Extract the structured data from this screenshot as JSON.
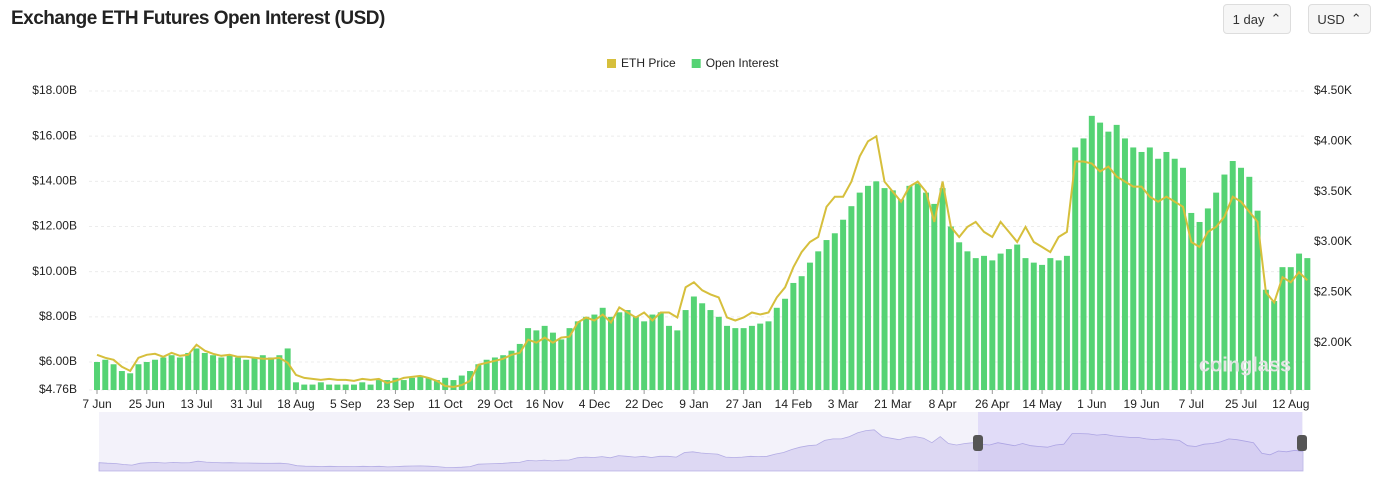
{
  "chart_data": {
    "type": "bar",
    "title": "Exchange ETH Futures Open Interest (USD)",
    "controls": [
      "1 day",
      "USD"
    ],
    "watermark": "coinglass",
    "legend": "top",
    "grid": true,
    "categories": [
      "7 Jun",
      null,
      null,
      null,
      null,
      null,
      "25 Jun",
      null,
      null,
      null,
      null,
      null,
      "13 Jul",
      null,
      null,
      null,
      null,
      null,
      "31 Jul",
      null,
      null,
      null,
      null,
      null,
      "18 Aug",
      null,
      null,
      null,
      null,
      null,
      "5 Sep",
      null,
      null,
      null,
      null,
      null,
      "23 Sep",
      null,
      null,
      null,
      null,
      null,
      "11 Oct",
      null,
      null,
      null,
      null,
      null,
      "29 Oct",
      null,
      null,
      null,
      null,
      null,
      "16 Nov",
      null,
      null,
      null,
      null,
      null,
      "4 Dec",
      null,
      null,
      null,
      null,
      null,
      "22 Dec",
      null,
      null,
      null,
      null,
      null,
      "9 Jan",
      null,
      null,
      null,
      null,
      null,
      "27 Jan",
      null,
      null,
      null,
      null,
      null,
      "14 Feb",
      null,
      null,
      null,
      null,
      null,
      "3 Mar",
      null,
      null,
      null,
      null,
      null,
      "21 Mar",
      null,
      null,
      null,
      null,
      null,
      "8 Apr",
      null,
      null,
      null,
      null,
      null,
      "26 Apr",
      null,
      null,
      null,
      null,
      null,
      "14 May",
      null,
      null,
      null,
      null,
      null,
      "1 Jun",
      null,
      null,
      null,
      null,
      null,
      "19 Jun",
      null,
      null,
      null,
      null,
      null,
      "7 Jul",
      null,
      null,
      null,
      null,
      null,
      "25 Jul",
      null,
      null,
      null,
      null,
      null,
      "12 Aug",
      null,
      null
    ],
    "series": [
      {
        "name": "ETH Price",
        "type": "line",
        "axis": "y2",
        "color": "#d6bf3c",
        "values": [
          1.88,
          1.85,
          1.83,
          1.76,
          1.72,
          1.85,
          1.88,
          1.89,
          1.86,
          1.9,
          1.87,
          1.88,
          1.98,
          1.92,
          1.89,
          1.87,
          1.88,
          1.86,
          1.86,
          1.85,
          1.84,
          1.84,
          1.85,
          1.8,
          1.68,
          1.65,
          1.64,
          1.63,
          1.64,
          1.63,
          1.63,
          1.62,
          1.64,
          1.63,
          1.64,
          1.6,
          1.62,
          1.65,
          1.66,
          1.67,
          1.65,
          1.62,
          1.57,
          1.56,
          1.58,
          1.62,
          1.78,
          1.8,
          1.82,
          1.84,
          1.88,
          1.9,
          2.03,
          2.0,
          2.05,
          2.0,
          2.05,
          2.06,
          2.2,
          2.25,
          2.22,
          2.28,
          2.2,
          2.35,
          2.3,
          2.25,
          2.3,
          2.22,
          2.3,
          2.3,
          2.25,
          2.55,
          2.6,
          2.52,
          2.48,
          2.45,
          2.25,
          2.22,
          2.25,
          2.3,
          2.28,
          2.3,
          2.45,
          2.55,
          2.75,
          2.9,
          3.0,
          3.05,
          3.35,
          3.45,
          3.45,
          3.6,
          3.85,
          4.0,
          4.05,
          3.6,
          3.5,
          3.4,
          3.55,
          3.6,
          3.5,
          3.2,
          3.6,
          3.15,
          3.05,
          3.15,
          3.2,
          3.1,
          3.05,
          3.2,
          3.1,
          3.0,
          3.15,
          3.0,
          2.95,
          2.9,
          3.05,
          3.1,
          3.8,
          3.8,
          3.78,
          3.7,
          3.75,
          3.65,
          3.6,
          3.55,
          3.55,
          3.45,
          3.4,
          3.45,
          3.4,
          3.35,
          3.0,
          2.95,
          3.1,
          3.15,
          3.25,
          3.45,
          3.4,
          3.3,
          3.2,
          2.5,
          2.4,
          2.65,
          2.6,
          2.7,
          2.62
        ]
      },
      {
        "name": "Open Interest",
        "type": "bar",
        "color": "#55d374",
        "values": [
          6.0,
          6.1,
          5.9,
          5.6,
          5.5,
          5.9,
          6.0,
          6.1,
          6.2,
          6.3,
          6.2,
          6.4,
          6.6,
          6.4,
          6.3,
          6.2,
          6.3,
          6.2,
          6.1,
          6.2,
          6.3,
          6.2,
          6.3,
          6.6,
          5.1,
          5.0,
          5.0,
          5.1,
          5.0,
          5.0,
          5.0,
          5.0,
          5.1,
          5.0,
          5.2,
          5.2,
          5.3,
          5.2,
          5.3,
          5.4,
          5.3,
          5.2,
          5.3,
          5.2,
          5.4,
          5.6,
          5.9,
          6.1,
          6.2,
          6.3,
          6.5,
          6.8,
          7.5,
          7.4,
          7.6,
          7.3,
          7.0,
          7.5,
          7.8,
          8.0,
          8.1,
          8.4,
          8.0,
          8.2,
          8.3,
          8.0,
          7.8,
          8.1,
          8.2,
          7.6,
          7.4,
          8.3,
          8.9,
          8.6,
          8.3,
          8.0,
          7.6,
          7.5,
          7.5,
          7.6,
          7.7,
          7.8,
          8.4,
          8.8,
          9.5,
          9.8,
          10.4,
          10.9,
          11.4,
          11.7,
          12.3,
          12.9,
          13.5,
          13.8,
          14.0,
          13.7,
          13.6,
          13.2,
          13.8,
          13.9,
          13.5,
          13.0,
          13.7,
          12.0,
          11.3,
          10.9,
          10.6,
          10.7,
          10.5,
          10.8,
          11.0,
          11.2,
          10.6,
          10.4,
          10.3,
          10.6,
          10.5,
          10.7,
          15.5,
          15.9,
          16.9,
          16.6,
          16.2,
          16.5,
          15.9,
          15.5,
          15.3,
          15.5,
          15.0,
          15.3,
          15.0,
          14.6,
          12.6,
          12.2,
          12.8,
          13.5,
          14.3,
          14.9,
          14.6,
          14.2,
          12.7,
          9.2,
          8.7,
          10.2,
          10.2,
          10.8,
          10.6
        ]
      }
    ],
    "ylim": [
      4.76,
      18
    ],
    "yticks": [
      {
        "value": 4.76,
        "label": "$4.76B"
      },
      {
        "value": 6,
        "label": "$6.00B"
      },
      {
        "value": 8,
        "label": "$8.00B"
      },
      {
        "value": 10,
        "label": "$10.00B"
      },
      {
        "value": 12,
        "label": "$12.00B"
      },
      {
        "value": 14,
        "label": "$14.00B"
      },
      {
        "value": 16,
        "label": "$16.00B"
      },
      {
        "value": 18,
        "label": "$18.00B"
      }
    ],
    "y2lim": [
      1.53,
      4.5
    ],
    "y2ticks": [
      {
        "value": 2,
        "label": "$2.00K"
      },
      {
        "value": 2.5,
        "label": "$2.50K"
      },
      {
        "value": 3,
        "label": "$3.00K"
      },
      {
        "value": 3.5,
        "label": "$3.50K"
      },
      {
        "value": 4,
        "label": "$4.00K"
      },
      {
        "value": 4.5,
        "label": "$4.50K"
      }
    ]
  }
}
